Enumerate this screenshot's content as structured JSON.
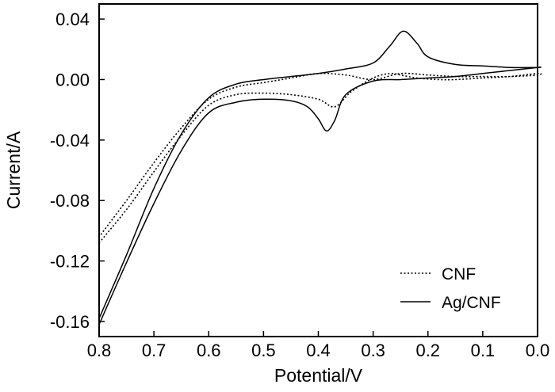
{
  "chart_data": {
    "type": "line",
    "title": "",
    "xlabel": "Potential/V",
    "ylabel": "Current/A",
    "xlim": [
      0.8,
      0.0
    ],
    "ylim": [
      -0.17,
      0.05
    ],
    "xticks": [
      0.8,
      0.7,
      0.6,
      0.5,
      0.4,
      0.3,
      0.2,
      0.1,
      0.0
    ],
    "xtick_labels": [
      "0.8",
      "0.7",
      "0.6",
      "0.5",
      "0.4",
      "0.3",
      "0.2",
      "0.1",
      "0.0"
    ],
    "yticks": [
      0.04,
      0.0,
      -0.04,
      -0.08,
      -0.12,
      -0.16
    ],
    "ytick_labels": [
      "0.04",
      "0.00",
      "-0.04",
      "-0.08",
      "-0.12",
      "-0.16"
    ],
    "grid": false,
    "legend_position": "bottom-right",
    "series": [
      {
        "name": "CNF",
        "style": "dotted",
        "color": "#000000",
        "x": [
          0.8,
          0.75,
          0.7,
          0.65,
          0.6,
          0.55,
          0.5,
          0.45,
          0.4,
          0.37,
          0.34,
          0.3,
          0.27,
          0.25,
          0.22,
          0.18,
          0.15,
          0.1,
          0.05,
          0.0,
          0.0,
          0.05,
          0.1,
          0.15,
          0.2,
          0.25,
          0.3,
          0.35,
          0.4,
          0.45,
          0.5,
          0.55,
          0.6,
          0.65,
          0.7,
          0.75,
          0.8
        ],
        "y": [
          -0.108,
          -0.086,
          -0.061,
          -0.037,
          -0.017,
          -0.01,
          -0.009,
          -0.01,
          -0.013,
          -0.018,
          -0.008,
          0.001,
          0.004,
          0.003,
          0.001,
          0.0,
          0.0,
          0.001,
          0.002,
          0.004,
          0.003,
          0.002,
          0.002,
          0.002,
          0.003,
          0.004,
          0.0,
          0.003,
          0.004,
          0.001,
          -0.002,
          -0.005,
          -0.013,
          -0.032,
          -0.055,
          -0.08,
          -0.104
        ]
      },
      {
        "name": "Ag/CNF",
        "style": "solid",
        "color": "#000000",
        "x": [
          0.8,
          0.75,
          0.7,
          0.65,
          0.6,
          0.55,
          0.5,
          0.45,
          0.42,
          0.4,
          0.385,
          0.37,
          0.35,
          0.3,
          0.25,
          0.2,
          0.15,
          0.1,
          0.05,
          0.0,
          0.0,
          0.05,
          0.1,
          0.15,
          0.2,
          0.22,
          0.245,
          0.27,
          0.3,
          0.35,
          0.4,
          0.45,
          0.5,
          0.55,
          0.6,
          0.65,
          0.7,
          0.75,
          0.8
        ],
        "y": [
          -0.162,
          -0.121,
          -0.082,
          -0.047,
          -0.022,
          -0.015,
          -0.013,
          -0.014,
          -0.018,
          -0.026,
          -0.034,
          -0.027,
          -0.01,
          -0.001,
          0.0,
          0.001,
          0.002,
          0.004,
          0.006,
          0.008,
          0.008,
          0.008,
          0.009,
          0.01,
          0.015,
          0.024,
          0.032,
          0.022,
          0.011,
          0.007,
          0.004,
          0.002,
          0.0,
          -0.003,
          -0.012,
          -0.036,
          -0.072,
          -0.116,
          -0.158
        ]
      }
    ]
  }
}
